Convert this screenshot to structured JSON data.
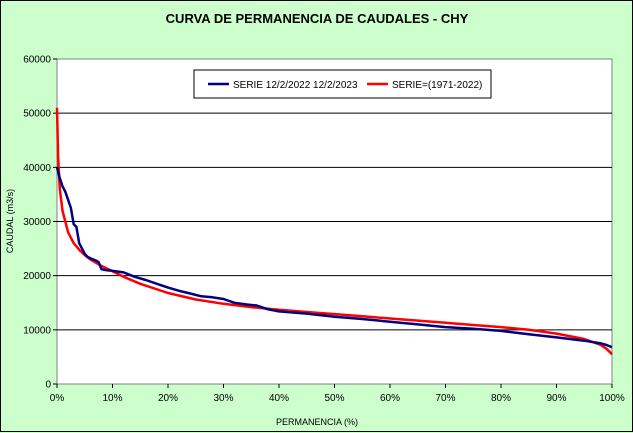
{
  "chart_data": {
    "type": "line",
    "title": "CURVA DE PERMANENCIA DE CAUDALES - CHY",
    "xlabel": "PERMANENCIA (%)",
    "ylabel": "CAUDAL (m3/s)",
    "xlim": [
      0,
      100
    ],
    "ylim": [
      0,
      60000
    ],
    "x_ticks": [
      "0%",
      "10%",
      "20%",
      "30%",
      "40%",
      "50%",
      "60%",
      "70%",
      "80%",
      "90%",
      "100%"
    ],
    "y_ticks": [
      "0",
      "10000",
      "20000",
      "30000",
      "40000",
      "50000",
      "60000"
    ],
    "grid": "horizontal",
    "legend_position": "top-center",
    "series": [
      {
        "name": "SERIE 12/2/2022 12/2/2023",
        "color": "#000080",
        "x": [
          0,
          0.5,
          1,
          1.5,
          2,
          2.5,
          3,
          3.5,
          4,
          4.5,
          5,
          5.5,
          6,
          6.5,
          7,
          7.5,
          8,
          9,
          10,
          12,
          14,
          16,
          18,
          20,
          22,
          24,
          26,
          28,
          30,
          32,
          34,
          36,
          38,
          40,
          45,
          50,
          55,
          60,
          65,
          70,
          75,
          80,
          85,
          90,
          95,
          98,
          99,
          100
        ],
        "y": [
          40000,
          38000,
          36500,
          35500,
          34000,
          32500,
          29500,
          29000,
          26000,
          25000,
          24000,
          23500,
          23200,
          23000,
          22800,
          22500,
          21200,
          21000,
          20900,
          20600,
          19800,
          19200,
          18500,
          17800,
          17200,
          16700,
          16200,
          16000,
          15700,
          15000,
          14700,
          14500,
          13800,
          13400,
          13000,
          12400,
          12000,
          11500,
          11000,
          10500,
          10200,
          9800,
          9200,
          8600,
          8000,
          7500,
          7200,
          6800
        ]
      },
      {
        "name": "SERIE=(1971-2022)",
        "color": "#ff0000",
        "x": [
          0,
          0.2,
          0.5,
          1,
          1.5,
          2,
          3,
          4,
          5,
          6,
          8,
          10,
          12,
          15,
          20,
          25,
          30,
          35,
          40,
          45,
          50,
          55,
          60,
          65,
          70,
          75,
          80,
          85,
          90,
          95,
          98,
          99,
          100
        ],
        "y": [
          51000,
          42000,
          36000,
          32000,
          30000,
          28000,
          26000,
          24800,
          23800,
          23000,
          21800,
          20800,
          19800,
          18500,
          16800,
          15600,
          14800,
          14200,
          13700,
          13300,
          12900,
          12500,
          12100,
          11700,
          11300,
          10900,
          10500,
          10000,
          9300,
          8300,
          7200,
          6500,
          5500
        ]
      }
    ]
  }
}
